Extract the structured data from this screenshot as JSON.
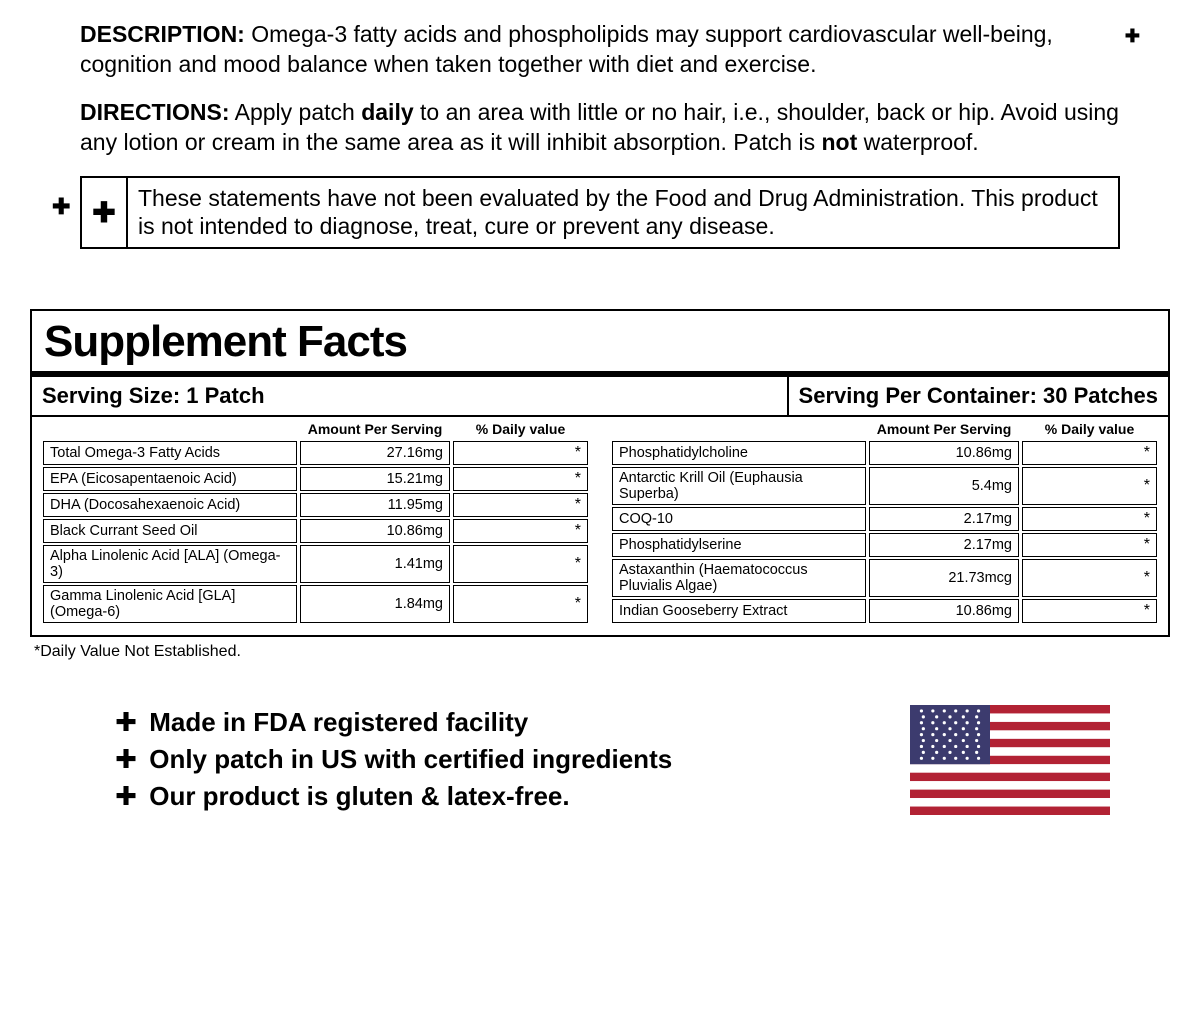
{
  "description": {
    "label": "DESCRIPTION:",
    "text": "Omega-3 fatty acids and phospholipids may support cardiovascular well-being, cognition and mood balance when taken together with diet and exercise."
  },
  "directions": {
    "label": "DIRECTIONS:",
    "part1": "Apply patch ",
    "bold1": "daily",
    "part2": " to an area with little or no hair, i.e., shoulder, back or hip. Avoid using any lotion or cream in the same area as it will inhibit absorption. Patch is ",
    "bold2": "not",
    "part3": " waterproof."
  },
  "disclaimer": "These statements have not been evaluated by the Food and Drug Administration. This product is not intended to diagnose, treat, cure or prevent any disease.",
  "facts": {
    "title": "Supplement Facts",
    "serving_size": "Serving Size: 1 Patch",
    "serving_per_container": "Serving Per Container: 30 Patches",
    "headers": {
      "amount": "Amount Per Serving",
      "dv": "% Daily value"
    },
    "left_rows": [
      {
        "name": "Total Omega-3 Fatty Acids",
        "amount": "27.16mg",
        "dv": "*"
      },
      {
        "name": "EPA (Eicosapentaenoic Acid)",
        "amount": "15.21mg",
        "dv": "*"
      },
      {
        "name": "DHA (Docosahexaenoic Acid)",
        "amount": "11.95mg",
        "dv": "*"
      },
      {
        "name": "Black Currant Seed Oil",
        "amount": "10.86mg",
        "dv": "*"
      },
      {
        "name": "Alpha Linolenic Acid [ALA] (Omega-3)",
        "amount": "1.41mg",
        "dv": "*"
      },
      {
        "name": "Gamma Linolenic Acid [GLA] (Omega-6)",
        "amount": "1.84mg",
        "dv": "*"
      }
    ],
    "right_rows": [
      {
        "name": "Phosphatidylcholine",
        "amount": "10.86mg",
        "dv": "*"
      },
      {
        "name": "Antarctic Krill Oil (Euphausia Superba)",
        "amount": "5.4mg",
        "dv": "*"
      },
      {
        "name": "COQ-10",
        "amount": "2.17mg",
        "dv": "*"
      },
      {
        "name": "Phosphatidylserine",
        "amount": "2.17mg",
        "dv": "*"
      },
      {
        "name": "Astaxanthin (Haematococcus Pluvialis Algae)",
        "amount": "21.73mcg",
        "dv": "*"
      },
      {
        "name": "Indian Gooseberry Extract",
        "amount": "10.86mg",
        "dv": "*"
      }
    ],
    "dv_note": "*Daily Value Not Established."
  },
  "claims": [
    "Made in FDA registered facility",
    "Only patch in US with certified ingredients",
    "Our product is gluten & latex-free."
  ],
  "glyphs": {
    "plus": "✚",
    "dagger": "✚"
  },
  "flag": {
    "red": "#b22234",
    "white": "#ffffff",
    "blue": "#3c3b6e"
  }
}
